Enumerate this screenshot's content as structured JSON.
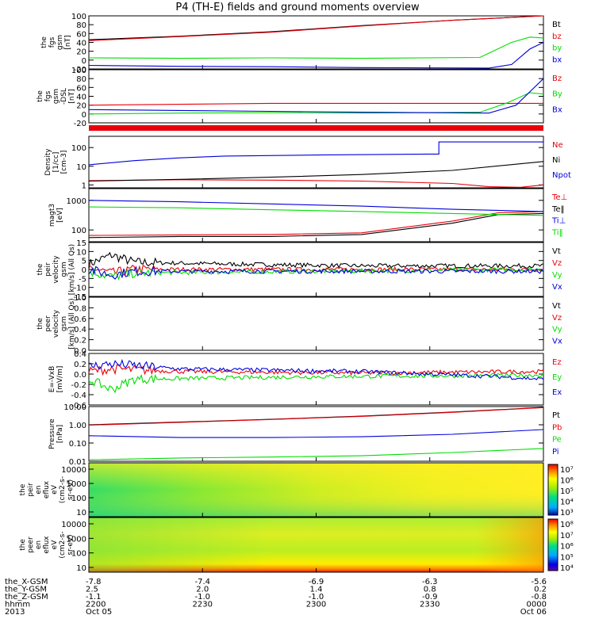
{
  "title": "P4 (TH-E) fields and ground moments overview",
  "colors": {
    "black": "#000000",
    "red": "#e8000b",
    "green": "#00dd00",
    "blue": "#0000dd"
  },
  "chart_data": {
    "type": "line",
    "x_ticks": [
      "2200",
      "2230",
      "2300",
      "2330",
      "0000"
    ],
    "panels": [
      {
        "id": "fgs-gsm",
        "ylabel": [
          "the",
          "fgs",
          "gsm",
          "[nT]"
        ],
        "yticks": [
          "100",
          "80",
          "60",
          "40",
          "20",
          "0",
          "-20"
        ],
        "ylim": [
          -20,
          100
        ],
        "series": [
          {
            "name": "Bt",
            "color": "black",
            "points": [
              [
                0,
                46
              ],
              [
                0.2,
                54
              ],
              [
                0.4,
                64
              ],
              [
                0.6,
                78
              ],
              [
                0.8,
                90
              ],
              [
                1,
                100
              ]
            ]
          },
          {
            "name": "bz",
            "color": "red",
            "points": [
              [
                0,
                44
              ],
              [
                0.2,
                53
              ],
              [
                0.4,
                63
              ],
              [
                0.6,
                77
              ],
              [
                0.8,
                90
              ],
              [
                1,
                100
              ]
            ]
          },
          {
            "name": "by",
            "color": "green",
            "points": [
              [
                0,
                5
              ],
              [
                0.2,
                4
              ],
              [
                0.4,
                5
              ],
              [
                0.6,
                4
              ],
              [
                0.86,
                6
              ],
              [
                0.93,
                40
              ],
              [
                0.97,
                52
              ],
              [
                1,
                50
              ]
            ]
          },
          {
            "name": "bx",
            "color": "blue",
            "points": [
              [
                0,
                -12
              ],
              [
                0.2,
                -14
              ],
              [
                0.4,
                -15
              ],
              [
                0.6,
                -17
              ],
              [
                0.88,
                -18
              ],
              [
                0.93,
                -10
              ],
              [
                0.97,
                25
              ],
              [
                1,
                40
              ]
            ]
          }
        ]
      },
      {
        "id": "fgs-gsm-dsl",
        "ylabel": [
          "the",
          "fgs",
          "gsm",
          "-DSL",
          "[nT]"
        ],
        "yticks": [
          "100",
          "80",
          "60",
          "40",
          "20",
          "0",
          "-20"
        ],
        "ylim": [
          -20,
          100
        ],
        "series": [
          {
            "name": "Bz",
            "color": "red",
            "points": [
              [
                0,
                20
              ],
              [
                0.2,
                22
              ],
              [
                0.4,
                24
              ],
              [
                0.6,
                24
              ],
              [
                0.8,
                24
              ],
              [
                1,
                24
              ]
            ]
          },
          {
            "name": "By",
            "color": "green",
            "points": [
              [
                0,
                0
              ],
              [
                0.2,
                2
              ],
              [
                0.4,
                3
              ],
              [
                0.6,
                2
              ],
              [
                0.86,
                4
              ],
              [
                0.92,
                25
              ],
              [
                0.97,
                48
              ],
              [
                1,
                45
              ]
            ]
          },
          {
            "name": "Bx",
            "color": "blue",
            "points": [
              [
                0,
                10
              ],
              [
                0.2,
                8
              ],
              [
                0.4,
                6
              ],
              [
                0.6,
                4
              ],
              [
                0.88,
                2
              ],
              [
                0.94,
                20
              ],
              [
                1,
                80
              ]
            ]
          }
        ]
      },
      {
        "id": "density",
        "ylabel": [
          "Density",
          "[1/cc]",
          "[cm-3]"
        ],
        "yticks": [
          "100",
          "10",
          "1"
        ],
        "ylim": [
          0.7,
          400
        ],
        "log": true,
        "series": [
          {
            "name": "Ne",
            "color": "red",
            "points": [
              [
                0,
                1.7
              ],
              [
                0.2,
                1.9
              ],
              [
                0.4,
                1.8
              ],
              [
                0.6,
                1.6
              ],
              [
                0.8,
                1.2
              ],
              [
                0.88,
                0.8
              ],
              [
                0.95,
                0.75
              ],
              [
                1,
                1.0
              ]
            ]
          },
          {
            "name": "Ni",
            "color": "black",
            "points": [
              [
                0,
                1.6
              ],
              [
                0.2,
                2.0
              ],
              [
                0.4,
                2.6
              ],
              [
                0.6,
                3.6
              ],
              [
                0.8,
                6
              ],
              [
                1,
                18
              ]
            ]
          },
          {
            "name": "Npot",
            "color": "blue",
            "points": [
              [
                0,
                12
              ],
              [
                0.1,
                20
              ],
              [
                0.2,
                28
              ],
              [
                0.3,
                35
              ],
              [
                0.5,
                40
              ],
              [
                0.75,
                45
              ],
              [
                0.77,
                45
              ],
              [
                0.77,
                200
              ],
              [
                1,
                200
              ]
            ]
          }
        ]
      },
      {
        "id": "magt3",
        "ylabel": [
          "magt3",
          "[eV]"
        ],
        "yticks": [
          "1000",
          "100"
        ],
        "ylim": [
          40,
          2500
        ],
        "log": true,
        "series": [
          {
            "name": "Te⊥",
            "color": "red",
            "points": [
              [
                0,
                65
              ],
              [
                0.2,
                68
              ],
              [
                0.4,
                70
              ],
              [
                0.6,
                80
              ],
              [
                0.8,
                200
              ],
              [
                0.9,
                380
              ],
              [
                1,
                420
              ]
            ]
          },
          {
            "name": "Te‖",
            "color": "black",
            "points": [
              [
                0,
                55
              ],
              [
                0.2,
                60
              ],
              [
                0.4,
                60
              ],
              [
                0.6,
                70
              ],
              [
                0.8,
                170
              ],
              [
                0.9,
                330
              ],
              [
                1,
                360
              ]
            ]
          },
          {
            "name": "Ti⊥",
            "color": "blue",
            "points": [
              [
                0,
                1000
              ],
              [
                0.2,
                900
              ],
              [
                0.4,
                760
              ],
              [
                0.6,
                640
              ],
              [
                0.8,
                500
              ],
              [
                1,
                420
              ]
            ]
          },
          {
            "name": "Ti‖",
            "color": "green",
            "points": [
              [
                0,
                600
              ],
              [
                0.2,
                560
              ],
              [
                0.4,
                480
              ],
              [
                0.6,
                420
              ],
              [
                0.8,
                360
              ],
              [
                1,
                310
              ]
            ]
          }
        ]
      },
      {
        "id": "peir-velocity",
        "ylabel": [
          "the",
          "peir",
          "velocity",
          "gsm",
          "[km/s] (All Qs)"
        ],
        "yticks": [
          "15",
          "10",
          "5",
          "0",
          "-5",
          "-10",
          "-15"
        ],
        "ylim": [
          -15,
          15
        ],
        "series": [
          {
            "name": "Vt",
            "color": "black",
            "points": [
              [
                0,
                3
              ],
              [
                0.05,
                8
              ],
              [
                0.1,
                4
              ],
              [
                0.3,
                3
              ],
              [
                0.6,
                2
              ],
              [
                1,
                2
              ]
            ]
          },
          {
            "name": "Vz",
            "color": "red",
            "points": [
              [
                0,
                1
              ],
              [
                0.05,
                -2
              ],
              [
                0.1,
                0
              ],
              [
                0.5,
                0
              ],
              [
                1,
                0
              ]
            ]
          },
          {
            "name": "Vy",
            "color": "green",
            "points": [
              [
                0,
                -1
              ],
              [
                0.05,
                -4
              ],
              [
                0.1,
                -2
              ],
              [
                0.5,
                -1
              ],
              [
                1,
                0
              ]
            ]
          },
          {
            "name": "Vx",
            "color": "blue",
            "points": [
              [
                0,
                0
              ],
              [
                0.05,
                -3
              ],
              [
                0.1,
                -1
              ],
              [
                0.5,
                -1
              ],
              [
                1,
                -1
              ]
            ]
          }
        ]
      },
      {
        "id": "peer-velocity",
        "ylabel": [
          "the",
          "peer",
          "velocity",
          "gsm",
          "[km/s] (All Qs)"
        ],
        "yticks": [
          "1.0",
          "0.8",
          "0.6",
          "0.4",
          "0.2",
          "0.0"
        ],
        "ylim": [
          0,
          1
        ],
        "series": [
          {
            "name": "Vt",
            "color": "black",
            "points": []
          },
          {
            "name": "Vz",
            "color": "red",
            "points": []
          },
          {
            "name": "Vy",
            "color": "green",
            "points": []
          },
          {
            "name": "Vx",
            "color": "blue",
            "points": []
          }
        ]
      },
      {
        "id": "efield",
        "ylabel": [
          "E=-VxB",
          "[mV/m]"
        ],
        "yticks": [
          "0.4",
          "0.2",
          "0.0",
          "-0.2",
          "-0.4",
          "-0.6"
        ],
        "ylim": [
          -0.6,
          0.4
        ],
        "series": [
          {
            "name": "Ez",
            "color": "red",
            "points": [
              [
                0,
                0.05
              ],
              [
                0.05,
                0.1
              ],
              [
                0.2,
                0.05
              ],
              [
                0.6,
                0.02
              ],
              [
                1,
                0.05
              ]
            ]
          },
          {
            "name": "Ey",
            "color": "green",
            "points": [
              [
                0,
                -0.1
              ],
              [
                0.05,
                -0.3
              ],
              [
                0.1,
                -0.1
              ],
              [
                0.5,
                -0.05
              ],
              [
                1,
                -0.02
              ]
            ]
          },
          {
            "name": "Ex",
            "color": "blue",
            "points": [
              [
                0,
                0.15
              ],
              [
                0.05,
                0.2
              ],
              [
                0.2,
                0.1
              ],
              [
                0.6,
                0.05
              ],
              [
                0.9,
                -0.05
              ],
              [
                1,
                -0.1
              ]
            ]
          }
        ]
      },
      {
        "id": "pressure",
        "ylabel": [
          "Pressure",
          "[nPa]"
        ],
        "yticks": [
          "10.00",
          "1.00",
          "0.10",
          "0.01"
        ],
        "ylim": [
          0.01,
          10
        ],
        "log": true,
        "series": [
          {
            "name": "Pt",
            "color": "black",
            "points": [
              [
                0,
                1.0
              ],
              [
                0.2,
                1.4
              ],
              [
                0.4,
                2.0
              ],
              [
                0.6,
                3.0
              ],
              [
                0.8,
                5.0
              ],
              [
                1,
                9.0
              ]
            ]
          },
          {
            "name": "Pb",
            "color": "red",
            "points": [
              [
                0,
                0.95
              ],
              [
                0.2,
                1.35
              ],
              [
                0.4,
                1.95
              ],
              [
                0.6,
                2.9
              ],
              [
                0.8,
                4.8
              ],
              [
                1,
                8.8
              ]
            ]
          },
          {
            "name": "Pe",
            "color": "green",
            "points": [
              [
                0,
                0.012
              ],
              [
                0.2,
                0.015
              ],
              [
                0.4,
                0.017
              ],
              [
                0.6,
                0.02
              ],
              [
                0.8,
                0.03
              ],
              [
                1,
                0.05
              ]
            ]
          },
          {
            "name": "Pi",
            "color": "blue",
            "points": [
              [
                0,
                0.25
              ],
              [
                0.2,
                0.2
              ],
              [
                0.4,
                0.2
              ],
              [
                0.6,
                0.22
              ],
              [
                0.8,
                0.3
              ],
              [
                1,
                0.55
              ]
            ]
          }
        ]
      }
    ],
    "spectrograms": [
      {
        "id": "peir-en-eflux",
        "ylabel": [
          "the",
          "peir",
          "en",
          "eflux",
          "eV",
          "(cm2-s-",
          "sr-eV)"
        ],
        "yticks": [
          "10000",
          "1000",
          "100",
          "10"
        ],
        "cbar_ticks": [
          "10⁷",
          "10⁶",
          "10⁵",
          "10⁴",
          "10³"
        ]
      },
      {
        "id": "peer-en-eflux",
        "ylabel": [
          "the",
          "peer",
          "en",
          "eflux",
          "eV",
          "(cm2-s-",
          "sr-eV)"
        ],
        "yticks": [
          "10000",
          "1000",
          "100",
          "10"
        ],
        "cbar_ticks": [
          "10⁸",
          "10⁷",
          "10⁶",
          "10⁵",
          "10⁴"
        ]
      }
    ],
    "axis_rows": [
      {
        "label": "the_X-GSM",
        "values": [
          "-7.8",
          "-7.4",
          "-6.9",
          "-6.3",
          "-5.6"
        ]
      },
      {
        "label": "the_Y-GSM",
        "values": [
          "2.5",
          "2.0",
          "1.4",
          "0.8",
          "0.2"
        ]
      },
      {
        "label": "the_Z-GSM",
        "values": [
          "-1.1",
          "-1.0",
          "-1.0",
          "-0.9",
          "-0.8"
        ]
      },
      {
        "label": "hhmm",
        "values": [
          "2200",
          "2230",
          "2300",
          "2330",
          "0000"
        ]
      },
      {
        "label": "2013",
        "values": [
          "Oct 05",
          "",
          "",
          "",
          "Oct 06"
        ]
      }
    ]
  }
}
